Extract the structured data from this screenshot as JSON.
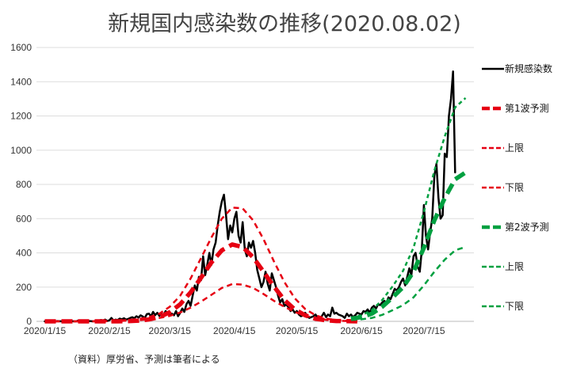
{
  "chart_data": {
    "type": "line",
    "title": "新規国内感染数の推移(2020.08.02)",
    "source_note": "（資料）厚労省、予測は筆者による",
    "x_unit": "days since 2020/1/15",
    "xlim": [
      -4,
      206
    ],
    "ylim": [
      0,
      1600
    ],
    "grid": "horizontal",
    "legend_placement": "right",
    "y_ticks": [
      0,
      200,
      400,
      600,
      800,
      1000,
      1200,
      1400,
      1600
    ],
    "x_ticks": [
      {
        "day": 0,
        "label": "2020/1/15"
      },
      {
        "day": 31,
        "label": "2020/2/15"
      },
      {
        "day": 60,
        "label": "2020/3/15"
      },
      {
        "day": 91,
        "label": "2020/4/15"
      },
      {
        "day": 121,
        "label": "2020/5/15"
      },
      {
        "day": 152,
        "label": "2020/6/15"
      },
      {
        "day": 182,
        "label": "2020/7/15"
      }
    ],
    "series": [
      {
        "name": "新規感染数",
        "color": "#000000",
        "style": "solid",
        "start_day": 0,
        "step": 1,
        "values": [
          0,
          0,
          1,
          0,
          0,
          0,
          2,
          1,
          0,
          1,
          0,
          2,
          5,
          1,
          0,
          0,
          4,
          2,
          0,
          1,
          3,
          2,
          1,
          0,
          2,
          3,
          5,
          8,
          4,
          10,
          2,
          6,
          20,
          5,
          10,
          8,
          16,
          12,
          18,
          10,
          14,
          20,
          24,
          18,
          30,
          22,
          35,
          28,
          20,
          42,
          45,
          30,
          55,
          36,
          50,
          32,
          45,
          38,
          60,
          44,
          40,
          45,
          35,
          60,
          30,
          50,
          75,
          55,
          100,
          120,
          90,
          150,
          210,
          180,
          260,
          240,
          380,
          270,
          330,
          400,
          330,
          420,
          460,
          560,
          640,
          700,
          740,
          620,
          480,
          560,
          520,
          600,
          640,
          500,
          460,
          580,
          420,
          380,
          460,
          430,
          470,
          400,
          300,
          250,
          200,
          230,
          290,
          220,
          180,
          280,
          240,
          200,
          150,
          110,
          130,
          90,
          100,
          80,
          60,
          70,
          50,
          60,
          40,
          30,
          35,
          50,
          30,
          20,
          25,
          30,
          40,
          20,
          15,
          30,
          50,
          25,
          40,
          30,
          80,
          45,
          50,
          40,
          35,
          30,
          20,
          45,
          30,
          40,
          25,
          35,
          50,
          45,
          40,
          60,
          55,
          70,
          50,
          80,
          90,
          75,
          100,
          95,
          110,
          120,
          105,
          140,
          130,
          160,
          190,
          180,
          200,
          230,
          250,
          210,
          260,
          310,
          270,
          380,
          400,
          320,
          290,
          420,
          680,
          500,
          420,
          520,
          600,
          850,
          920,
          720,
          600,
          620,
          980,
          960,
          1200,
          1300,
          1460,
          870
        ]
      },
      {
        "name": "第1波予測",
        "color": "#e60012",
        "style": "thick-dash",
        "start_day": 0,
        "step": 5,
        "values": [
          0,
          0,
          0,
          0,
          0,
          0,
          0,
          0,
          1,
          4,
          11,
          25,
          53,
          100,
          169,
          255,
          344,
          415,
          449,
          434,
          374,
          290,
          203,
          125,
          70,
          35,
          15,
          6,
          2,
          1,
          0
        ]
      },
      {
        "name": "上限",
        "color": "#e60012",
        "style": "dash",
        "start_day": 0,
        "step": 5,
        "values": [
          0,
          0,
          0,
          0,
          0,
          1,
          2,
          4,
          8,
          14,
          24,
          45,
          85,
          150,
          250,
          370,
          490,
          600,
          665,
          660,
          590,
          480,
          350,
          230,
          135,
          72,
          35,
          16,
          7,
          3,
          1
        ]
      },
      {
        "name": "下限",
        "color": "#e60012",
        "style": "dash",
        "start_day": 0,
        "step": 5,
        "values": [
          0,
          0,
          0,
          0,
          0,
          0,
          1,
          2,
          4,
          7,
          12,
          20,
          32,
          52,
          80,
          115,
          155,
          195,
          218,
          215,
          195,
          160,
          120,
          85,
          55,
          33,
          18,
          9,
          4,
          2,
          1
        ]
      },
      {
        "name": "第2波予測",
        "color": "#00a040",
        "style": "thick-dash",
        "start_day": 147,
        "step": 5,
        "values": [
          15,
          25,
          45,
          85,
          140,
          200,
          290,
          430,
          590,
          720,
          830,
          870
        ]
      },
      {
        "name": "上限",
        "color": "#00a040",
        "style": "dot",
        "start_day": 147,
        "step": 5,
        "values": [
          22,
          35,
          65,
          125,
          205,
          295,
          430,
          640,
          880,
          1080,
          1250,
          1305
        ]
      },
      {
        "name": "下限",
        "color": "#00a040",
        "style": "dash",
        "start_day": 147,
        "step": 5,
        "values": [
          8,
          12,
          20,
          38,
          65,
          95,
          140,
          210,
          290,
          360,
          415,
          435
        ]
      }
    ]
  }
}
